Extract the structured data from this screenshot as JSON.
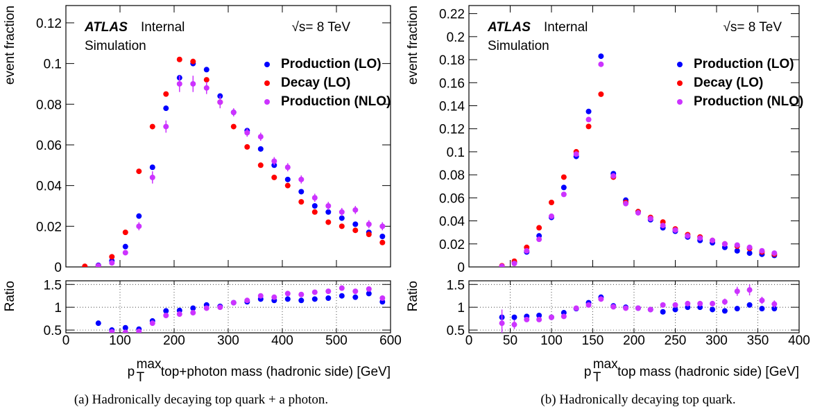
{
  "chart_data": [
    {
      "type": "scatter",
      "y_label": "event fraction",
      "caption": "(a) Hadronically decaying top quark + a photon.",
      "annotations": {
        "experiment": "ATLAS",
        "status": "Internal",
        "sample": "Simulation",
        "energy": "√s= 8 TeV"
      },
      "xlim": [
        0,
        600
      ],
      "xticks": [
        0,
        100,
        200,
        300,
        400,
        500,
        600
      ],
      "show_xtick_labels": false,
      "ylim": [
        0,
        0.1285
      ],
      "yticks": [
        0,
        0.02,
        0.04,
        0.06,
        0.08,
        0.1,
        0.12
      ],
      "grid": false,
      "x": [
        35,
        60,
        85,
        110,
        135,
        160,
        185,
        210,
        235,
        260,
        285,
        310,
        335,
        360,
        385,
        410,
        435,
        460,
        485,
        510,
        535,
        560,
        585
      ],
      "series": [
        {
          "name": "Production (LO)",
          "color": "#0000ff",
          "values": [
            0,
            0.0008,
            0.003,
            0.01,
            0.025,
            0.049,
            0.078,
            0.093,
            0.1,
            0.097,
            0.084,
            0.076,
            0.067,
            0.058,
            0.05,
            0.043,
            0.037,
            0.03,
            0.027,
            0.024,
            0.021,
            0.017,
            0.015
          ]
        },
        {
          "name": "Decay (LO)",
          "color": "#ff0000",
          "values": [
            0.0003,
            0.0005,
            0.005,
            0.017,
            0.047,
            0.069,
            0.085,
            0.102,
            0.101,
            0.092,
            0.081,
            0.069,
            0.059,
            0.05,
            0.044,
            0.04,
            0.032,
            0.027,
            0.022,
            0.02,
            0.018,
            0.016,
            0.012
          ]
        },
        {
          "name": "Production (NLO)",
          "color": "#cc33ff",
          "values": [
            null,
            0.0005,
            0.002,
            0.007,
            0.02,
            0.044,
            0.069,
            0.09,
            0.09,
            0.088,
            0.081,
            0.076,
            0.066,
            0.064,
            0.052,
            0.049,
            0.043,
            0.034,
            0.03,
            0.027,
            0.028,
            0.021,
            0.02
          ],
          "errors": [
            null,
            0.0005,
            0.001,
            0.001,
            0.002,
            0.003,
            0.003,
            0.004,
            0.004,
            0.003,
            0.003,
            0.002,
            0.002,
            0.002,
            0.002,
            0.002,
            0.002,
            0.002,
            0.002,
            0.002,
            0.002,
            0.002,
            0.002
          ]
        }
      ]
    },
    {
      "type": "scatter",
      "y_label": "Ratio",
      "x_label": {
        "base": "p",
        "sup": "max",
        "sub": "T",
        "rest": " top+photon mass (hadronic side) [GeV]"
      },
      "xlim": [
        0,
        600
      ],
      "xticks": [
        0,
        100,
        200,
        300,
        400,
        500,
        600
      ],
      "show_xtick_labels": true,
      "ylim": [
        0.44,
        1.58
      ],
      "yticks": [
        0.5,
        1,
        1.5
      ],
      "grid": true,
      "x": [
        35,
        60,
        85,
        110,
        135,
        160,
        185,
        210,
        235,
        260,
        285,
        310,
        335,
        360,
        385,
        410,
        435,
        460,
        485,
        510,
        535,
        560,
        585
      ],
      "series": [
        {
          "color": "#0000ff",
          "values": [
            null,
            0.65,
            0.5,
            0.55,
            0.52,
            0.7,
            0.92,
            0.93,
            0.98,
            1.05,
            1.02,
            1.1,
            1.12,
            1.18,
            1.15,
            1.18,
            1.15,
            1.18,
            1.2,
            1.25,
            1.22,
            1.3,
            1.12
          ]
        },
        {
          "color": "#cc33ff",
          "values": [
            null,
            null,
            0.46,
            0.45,
            0.47,
            0.65,
            0.82,
            0.85,
            0.88,
            0.98,
            1.0,
            1.1,
            1.15,
            1.25,
            1.22,
            1.3,
            1.28,
            1.33,
            1.35,
            1.42,
            1.35,
            1.4,
            1.2
          ],
          "errors": [
            null,
            null,
            0.05,
            0.03,
            0.03,
            0.03,
            0.03,
            0.03,
            0.03,
            0.03,
            0.02,
            0.02,
            0.02,
            0.03,
            0.03,
            0.03,
            0.03,
            0.03,
            0.04,
            0.04,
            0.04,
            0.05,
            0.06
          ]
        }
      ]
    },
    {
      "type": "scatter",
      "y_label": "event fraction",
      "caption": "(b) Hadronically decaying top quark.",
      "annotations": {
        "experiment": "ATLAS",
        "status": "Internal",
        "sample": "Simulation",
        "energy": "√s= 8 TeV"
      },
      "xlim": [
        0,
        400
      ],
      "xticks": [
        0,
        50,
        100,
        150,
        200,
        250,
        300,
        350,
        400
      ],
      "show_xtick_labels": false,
      "ylim": [
        0,
        0.227
      ],
      "yticks": [
        0,
        0.02,
        0.04,
        0.06,
        0.08,
        0.1,
        0.12,
        0.14,
        0.16,
        0.18,
        0.2,
        0.22
      ],
      "grid": false,
      "x": [
        40,
        55,
        70,
        85,
        100,
        115,
        130,
        145,
        160,
        175,
        190,
        205,
        220,
        235,
        250,
        265,
        280,
        295,
        310,
        325,
        340,
        355,
        370
      ],
      "series": [
        {
          "name": "Production (LO)",
          "color": "#0000ff",
          "values": [
            0.0005,
            0.004,
            0.013,
            0.027,
            0.043,
            0.069,
            0.096,
            0.135,
            0.183,
            0.081,
            0.058,
            0.048,
            0.041,
            0.034,
            0.031,
            0.026,
            0.023,
            0.021,
            0.017,
            0.014,
            0.012,
            0.011,
            0.01
          ]
        },
        {
          "name": "Decay (LO)",
          "color": "#ff0000",
          "values": [
            0.001,
            0.005,
            0.017,
            0.034,
            0.056,
            0.078,
            0.1,
            0.122,
            0.15,
            0.078,
            0.056,
            0.048,
            0.043,
            0.039,
            0.033,
            0.028,
            0.026,
            0.023,
            0.02,
            0.018,
            0.016,
            0.013,
            0.011
          ]
        },
        {
          "name": "Production (NLO)",
          "color": "#cc33ff",
          "values": [
            0.0005,
            0.003,
            0.014,
            0.024,
            0.044,
            0.063,
            0.098,
            0.128,
            0.176,
            0.079,
            0.055,
            0.047,
            0.042,
            0.036,
            0.032,
            0.027,
            0.025,
            0.023,
            0.02,
            0.019,
            0.017,
            0.014,
            0.012
          ]
        }
      ]
    },
    {
      "type": "scatter",
      "y_label": "Ratio",
      "x_label": {
        "base": "p",
        "sup": "max",
        "sub": "T",
        "rest": " top mass (hadronic side) [GeV]"
      },
      "xlim": [
        0,
        400
      ],
      "xticks": [
        0,
        50,
        100,
        150,
        200,
        250,
        300,
        350,
        400
      ],
      "show_xtick_labels": true,
      "ylim": [
        0.44,
        1.58
      ],
      "yticks": [
        0.5,
        1,
        1.5
      ],
      "grid": true,
      "x": [
        40,
        55,
        70,
        85,
        100,
        115,
        130,
        145,
        160,
        175,
        190,
        205,
        220,
        235,
        250,
        265,
        280,
        295,
        310,
        325,
        340,
        355,
        370
      ],
      "series": [
        {
          "color": "#0000ff",
          "values": [
            0.78,
            0.78,
            0.8,
            0.82,
            0.78,
            0.88,
            0.97,
            1.1,
            1.22,
            1.03,
            1.0,
            0.98,
            0.95,
            0.9,
            0.95,
            1.0,
            1.0,
            0.95,
            0.92,
            0.97,
            1.05,
            0.97,
            0.97
          ]
        },
        {
          "color": "#cc33ff",
          "values": [
            0.65,
            0.62,
            0.73,
            0.73,
            0.78,
            0.8,
            0.98,
            1.05,
            1.18,
            1.01,
            0.98,
            0.98,
            0.95,
            1.05,
            1.05,
            1.08,
            1.08,
            1.08,
            1.12,
            1.35,
            1.38,
            1.15,
            1.07
          ],
          "errors": [
            0.3,
            0.1,
            0.04,
            0.03,
            0.03,
            0.03,
            0.03,
            0.03,
            0.02,
            0.03,
            0.03,
            0.03,
            0.03,
            0.04,
            0.05,
            0.06,
            0.06,
            0.06,
            0.07,
            0.1,
            0.12,
            0.08,
            0.08
          ]
        }
      ]
    }
  ]
}
